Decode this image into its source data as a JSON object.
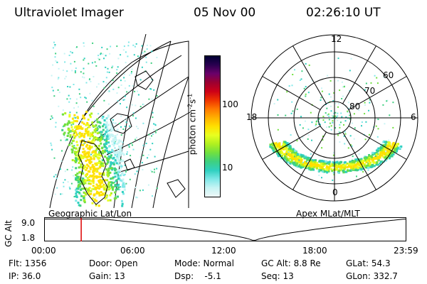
{
  "header": {
    "title": "Ultraviolet Imager",
    "date": "05 Nov 00",
    "time": "02:26:10 UT"
  },
  "geo_panel": {
    "label": "Geographic Lat/Lon"
  },
  "colorbar": {
    "unit_label": "photon cm-2s-1",
    "ticks": [
      "100",
      "10"
    ],
    "colors": [
      "#000033",
      "#2a0050",
      "#6a006a",
      "#9c0030",
      "#cc0018",
      "#ee3300",
      "#ff7700",
      "#ffb000",
      "#ffe000",
      "#e8ff20",
      "#b0f020",
      "#70e040",
      "#3ed080",
      "#30d0c0",
      "#7fe8e8",
      "#c8f4f4",
      "#eef9f9"
    ]
  },
  "polar_panel": {
    "label": "Apex MLat/MLT",
    "mlt_labels": {
      "top": "12",
      "left": "18",
      "right": "6",
      "bottom": "0"
    },
    "lat_labels": [
      "60",
      "70",
      "80"
    ]
  },
  "timeline": {
    "axis_label": "GC Alt",
    "y_ticks": [
      "9.0",
      "1.8"
    ],
    "x_ticks": [
      "00:00",
      "06:00",
      "12:00",
      "18:00",
      "23:59"
    ],
    "marker_time_hours": 2.436,
    "marker_color": "#dd0000"
  },
  "info": {
    "flt": "Flt: 1356",
    "door": "Door: Open",
    "mode": "Mode: Normal",
    "gc_alt": "GC Alt: 8.8 Re",
    "glat": "GLat:  54.3",
    "ip": "IP: 36.0",
    "gain": "Gain: 13",
    "dsp": "Dsp:    -5.1",
    "seq": "Seq: 13",
    "glon": "GLon: 332.7"
  }
}
